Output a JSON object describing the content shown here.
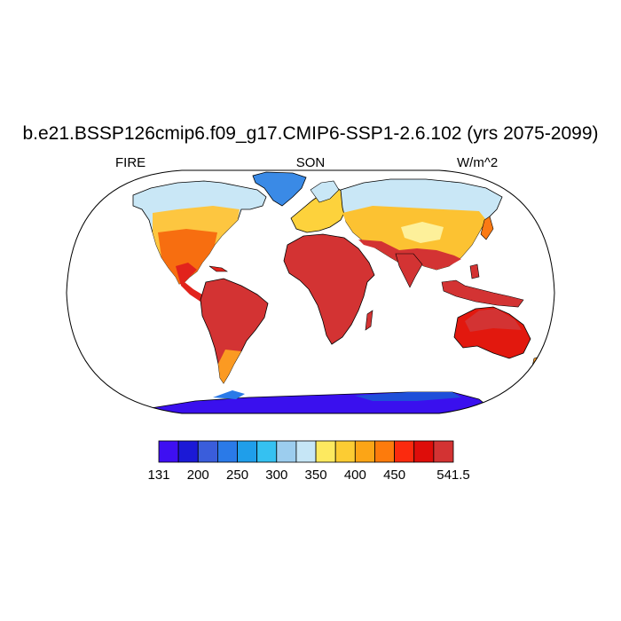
{
  "title": "b.e21.BSSP126cmip6.f09_g17.CMIP6-SSP1-2.6.102 (yrs 2075-2099)",
  "left_label": "FIRE",
  "center_label": "SON",
  "right_label": "W/m^2",
  "colorbar": {
    "colors": [
      "#3e0ff2",
      "#1b19d6",
      "#3a5ddb",
      "#2a7ae8",
      "#1f9eea",
      "#35c1f1",
      "#9ccdee",
      "#c6e6f6",
      "#fde95f",
      "#fccc33",
      "#fca516",
      "#fd7b0c",
      "#fb2a0e",
      "#de0d0a",
      "#d33333"
    ],
    "tick_labels": [
      "131",
      "200",
      "250",
      "300",
      "350",
      "400",
      "450",
      "541.5"
    ],
    "tick_box_index": [
      0,
      2,
      4,
      6,
      8,
      10,
      12,
      15
    ]
  }
}
